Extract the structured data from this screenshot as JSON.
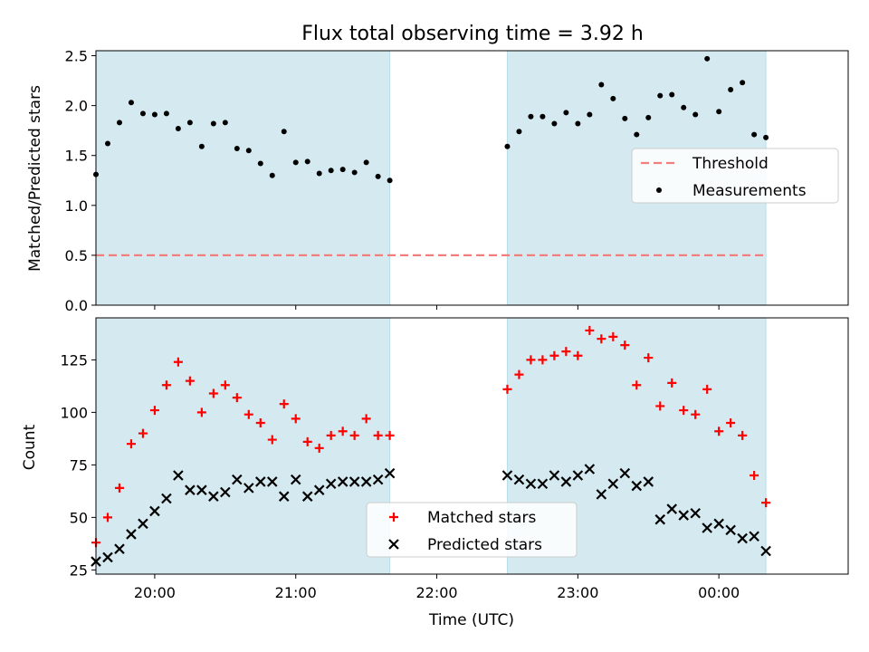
{
  "chart_data": [
    {
      "type": "scatter",
      "title": "Flux total observing time = 3.92 h",
      "xlabel": "",
      "ylabel": "Matched/Predicted stars",
      "ylim": [
        0,
        2.55
      ],
      "yticks": [
        "0.0",
        "0.5",
        "1.0",
        "1.5",
        "2.0",
        "2.5"
      ],
      "xlim": [
        "19:35",
        "00:55"
      ],
      "shaded_intervals": [
        [
          "19:35",
          "21:40"
        ],
        [
          "22:30",
          "00:20"
        ]
      ],
      "grid": false,
      "legend_position": "center-right",
      "threshold": {
        "name": "Threshold",
        "value": 0.5,
        "x_range": [
          "19:35",
          "00:20"
        ],
        "color": "#f08080",
        "style": "dashed"
      },
      "series": [
        {
          "name": "Measurements",
          "color": "#000000",
          "x": [
            "19:35",
            "19:40",
            "19:45",
            "19:50",
            "19:55",
            "20:00",
            "20:05",
            "20:10",
            "20:15",
            "20:20",
            "20:25",
            "20:30",
            "20:35",
            "20:40",
            "20:45",
            "20:50",
            "20:55",
            "21:00",
            "21:05",
            "21:10",
            "21:15",
            "21:20",
            "21:25",
            "21:30",
            "21:35",
            "21:40",
            "22:30",
            "22:35",
            "22:40",
            "22:45",
            "22:50",
            "22:55",
            "23:00",
            "23:05",
            "23:10",
            "23:15",
            "23:20",
            "23:25",
            "23:30",
            "23:35",
            "23:40",
            "23:45",
            "23:50",
            "23:55",
            "00:00",
            "00:05",
            "00:10",
            "00:15",
            "00:20"
          ],
          "values": [
            1.31,
            1.62,
            1.83,
            2.03,
            1.92,
            1.91,
            1.92,
            1.77,
            1.83,
            1.59,
            1.82,
            1.83,
            1.57,
            1.55,
            1.42,
            1.3,
            1.74,
            1.43,
            1.44,
            1.32,
            1.35,
            1.36,
            1.33,
            1.43,
            1.29,
            1.25,
            1.59,
            1.74,
            1.89,
            1.89,
            1.82,
            1.93,
            1.82,
            1.91,
            2.21,
            2.07,
            1.87,
            1.71,
            1.88,
            2.1,
            2.11,
            1.98,
            1.91,
            2.47,
            1.94,
            2.16,
            2.23,
            1.71,
            1.68
          ]
        }
      ]
    },
    {
      "type": "scatter",
      "title": "",
      "xlabel": "Time (UTC)",
      "ylabel": "Count",
      "ylim": [
        23,
        145
      ],
      "yticks": [
        "25",
        "50",
        "75",
        "100",
        "125"
      ],
      "xlim": [
        "19:35",
        "00:55"
      ],
      "xticks": [
        "20:00",
        "21:00",
        "22:00",
        "23:00",
        "00:00"
      ],
      "shaded_intervals": [
        [
          "19:35",
          "21:40"
        ],
        [
          "22:30",
          "00:20"
        ]
      ],
      "grid": false,
      "legend_position": "bottom-center",
      "series": [
        {
          "name": "Matched stars",
          "color": "#ff0000",
          "marker": "plus",
          "x": [
            "19:35",
            "19:40",
            "19:45",
            "19:50",
            "19:55",
            "20:00",
            "20:05",
            "20:10",
            "20:15",
            "20:20",
            "20:25",
            "20:30",
            "20:35",
            "20:40",
            "20:45",
            "20:50",
            "20:55",
            "21:00",
            "21:05",
            "21:10",
            "21:15",
            "21:20",
            "21:25",
            "21:30",
            "21:35",
            "21:40",
            "22:30",
            "22:35",
            "22:40",
            "22:45",
            "22:50",
            "22:55",
            "23:00",
            "23:05",
            "23:10",
            "23:15",
            "23:20",
            "23:25",
            "23:30",
            "23:35",
            "23:40",
            "23:45",
            "23:50",
            "23:55",
            "00:00",
            "00:05",
            "00:10",
            "00:15",
            "00:20"
          ],
          "values": [
            38,
            50,
            64,
            85,
            90,
            101,
            113,
            124,
            115,
            100,
            109,
            113,
            107,
            99,
            95,
            87,
            104,
            97,
            86,
            83,
            89,
            91,
            89,
            97,
            89,
            89,
            111,
            118,
            125,
            125,
            127,
            129,
            127,
            139,
            135,
            136,
            132,
            113,
            126,
            103,
            114,
            101,
            99,
            111,
            91,
            95,
            89,
            70,
            57
          ]
        },
        {
          "name": "Predicted stars",
          "color": "#000000",
          "marker": "x",
          "x": [
            "19:35",
            "19:40",
            "19:45",
            "19:50",
            "19:55",
            "20:00",
            "20:05",
            "20:10",
            "20:15",
            "20:20",
            "20:25",
            "20:30",
            "20:35",
            "20:40",
            "20:45",
            "20:50",
            "20:55",
            "21:00",
            "21:05",
            "21:10",
            "21:15",
            "21:20",
            "21:25",
            "21:30",
            "21:35",
            "21:40",
            "22:30",
            "22:35",
            "22:40",
            "22:45",
            "22:50",
            "22:55",
            "23:00",
            "23:05",
            "23:10",
            "23:15",
            "23:20",
            "23:25",
            "23:30",
            "23:35",
            "23:40",
            "23:45",
            "23:50",
            "23:55",
            "00:00",
            "00:05",
            "00:10",
            "00:15",
            "00:20"
          ],
          "values": [
            29,
            31,
            35,
            42,
            47,
            53,
            59,
            70,
            63,
            63,
            60,
            62,
            68,
            64,
            67,
            67,
            60,
            68,
            60,
            63,
            66,
            67,
            67,
            67,
            68,
            71,
            70,
            68,
            66,
            66,
            70,
            67,
            70,
            73,
            61,
            66,
            71,
            65,
            67,
            49,
            54,
            51,
            52,
            45,
            47,
            44,
            40,
            41,
            34
          ]
        }
      ]
    }
  ],
  "colors": {
    "shade": "#d4eaf0",
    "shade_edge": "#b8dde8"
  }
}
